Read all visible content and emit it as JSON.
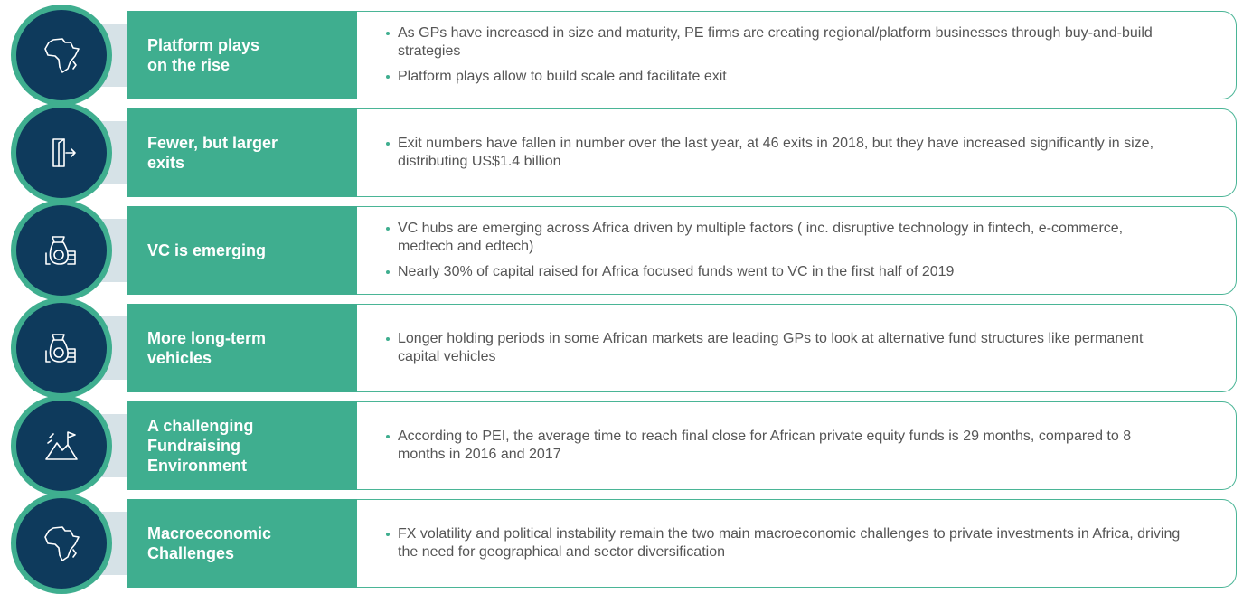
{
  "rows": [
    {
      "title": "Platform plays on the rise",
      "bullets": [
        "As GPs have increased in size and maturity, PE firms are creating regional/platform businesses through buy-and-build strategies",
        "Platform plays allow to build scale and facilitate exit"
      ]
    },
    {
      "title": "Fewer, but larger exits",
      "bullets": [
        "Exit numbers have fallen in number over the last year, at 46 exits in 2018, but they have increased significantly in size, distributing US$1.4 billion"
      ]
    },
    {
      "title": "VC is emerging",
      "bullets": [
        "VC hubs are emerging across Africa driven by multiple factors ( inc. disruptive technology in fintech, e-commerce, medtech and edtech)",
        "Nearly 30% of capital raised for Africa focused funds went to VC in the first half of 2019"
      ]
    },
    {
      "title": "More long-term vehicles",
      "bullets": [
        "Longer holding periods in some African markets are leading GPs to look at alternative fund structures like permanent capital vehicles"
      ]
    },
    {
      "title": "A challenging Fundraising Environment",
      "bullets": [
        "According to PEI, the average time to reach final close for African private equity funds is 29 months, compared to 8 months in 2016 and 2017"
      ]
    },
    {
      "title": "Macroeconomic Challenges",
      "bullets": [
        "FX volatility and political instability remain the two main macroeconomic challenges to private investments in Africa, driving the need for geographical and sector diversification"
      ]
    }
  ]
}
